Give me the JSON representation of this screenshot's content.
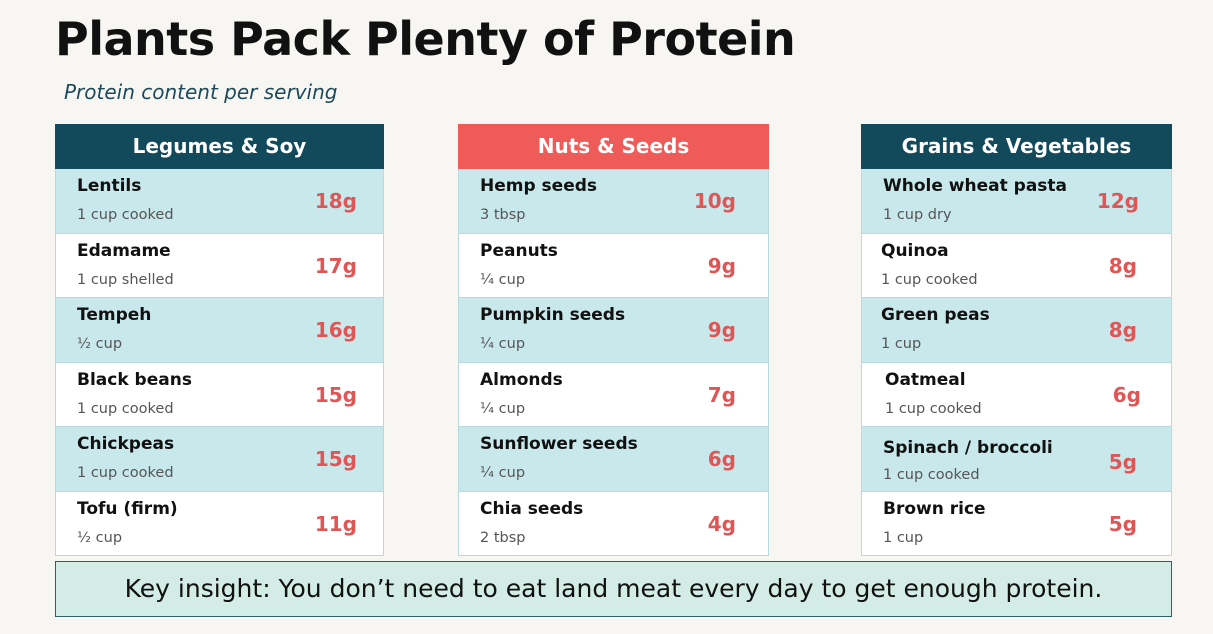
{
  "title": "Plants Pack Plenty of Protein",
  "subtitle": "Protein content per serving",
  "colors": {
    "legumes_header": "#124a5c",
    "nuts_header": "#ef5b58",
    "grains_header": "#124a5c",
    "protein_value": "#e05555",
    "row_alt": "#c9e8ec"
  },
  "columns": [
    {
      "header": "Legumes & Soy",
      "items": [
        {
          "food": "Lentils",
          "serving": "1 cup cooked",
          "protein": "18g"
        },
        {
          "food": "Edamame",
          "serving": "1 cup shelled",
          "protein": "17g"
        },
        {
          "food": "Tempeh",
          "serving": "½ cup",
          "protein": "16g"
        },
        {
          "food": "Black beans",
          "serving": "1 cup cooked",
          "protein": "15g"
        },
        {
          "food": "Chickpeas",
          "serving": "1 cup cooked",
          "protein": "15g"
        },
        {
          "food": "Tofu (firm)",
          "serving": "½ cup",
          "protein": "11g"
        }
      ]
    },
    {
      "header": "Nuts & Seeds",
      "items": [
        {
          "food": "Hemp seeds",
          "serving": "3 tbsp",
          "protein": "10g"
        },
        {
          "food": "Peanuts",
          "serving": "¼ cup",
          "protein": "9g"
        },
        {
          "food": "Pumpkin seeds",
          "serving": "¼ cup",
          "protein": "9g"
        },
        {
          "food": "Almonds",
          "serving": "¼ cup",
          "protein": "7g"
        },
        {
          "food": "Sunflower seeds",
          "serving": "¼ cup",
          "protein": "6g"
        },
        {
          "food": "Chia seeds",
          "serving": "2 tbsp",
          "protein": "4g"
        }
      ]
    },
    {
      "header": "Grains & Vegetables",
      "items": [
        {
          "food": "Whole wheat pasta",
          "serving": "1 cup dry",
          "protein": "12g"
        },
        {
          "food": "Quinoa",
          "serving": "1 cup cooked",
          "protein": "8g"
        },
        {
          "food": "Green peas",
          "serving": "1 cup",
          "protein": "8g"
        },
        {
          "food": "Oatmeal",
          "serving": "1 cup cooked",
          "protein": "6g"
        },
        {
          "food": "Spinach / broccoli",
          "serving": "1 cup cooked",
          "protein": "5g"
        },
        {
          "food": "Brown rice",
          "serving": "1 cup",
          "protein": "5g"
        }
      ]
    }
  ],
  "insight": "Key insight: You don’t need to eat land meat every day to get enough protein."
}
